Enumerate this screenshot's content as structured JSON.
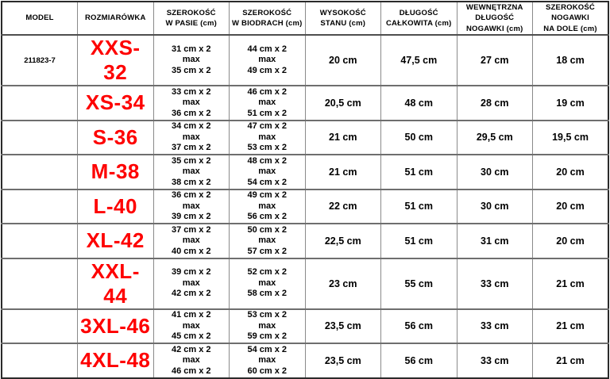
{
  "colors": {
    "size_label_red": "#fe0000",
    "text_black": "#000000",
    "grid_gray": "#8a8a8a"
  },
  "table": {
    "headers": {
      "model": "MODEL",
      "size": "ROZMIARÓWKA",
      "waist": "SZEROKOŚĆ\nW PASIE (cm)",
      "hips": "SZEROKOŚĆ\nW BIODRACH (cm)",
      "rise": "WYSOKOŚĆ\nSTANU (cm)",
      "length": "DŁUGOŚĆ\nCAŁKOWITA (cm)",
      "inseam": "WEWNĘTRZNA\nDŁUGOŚĆ\nNOGAWKI (cm)",
      "leg": "SZEROKOŚĆ\nNOGAWKI\nNA DOLE (cm)"
    },
    "rows": [
      {
        "model": "211823-7",
        "size": "XXS-32",
        "waist": "31 cm x 2\nmax\n35 cm x 2",
        "hips": "44 cm x 2\nmax\n49 cm x 2",
        "rise": "20 cm",
        "length": "47,5 cm",
        "inseam": "27 cm",
        "leg": "18 cm"
      },
      {
        "model": "",
        "size": "XS-34",
        "waist": "33 cm x 2\nmax\n36 cm x 2",
        "hips": "46 cm x 2\nmax\n51 cm x 2",
        "rise": "20,5 cm",
        "length": "48 cm",
        "inseam": "28 cm",
        "leg": "19 cm"
      },
      {
        "model": "",
        "size": "S-36",
        "waist": "34 cm x 2\nmax\n37 cm x 2",
        "hips": "47 cm x 2\nmax\n53 cm x 2",
        "rise": "21 cm",
        "length": "50 cm",
        "inseam": "29,5 cm",
        "leg": "19,5 cm"
      },
      {
        "model": "",
        "size": "M-38",
        "waist": "35 cm x 2\nmax\n38 cm x 2",
        "hips": "48 cm x 2\nmax\n54 cm x 2",
        "rise": "21 cm",
        "length": "51 cm",
        "inseam": "30 cm",
        "leg": "20 cm"
      },
      {
        "model": "",
        "size": "L-40",
        "waist": "36 cm x 2\nmax\n39 cm x 2",
        "hips": "49 cm x 2\nmax\n56 cm x 2",
        "rise": "22 cm",
        "length": "51 cm",
        "inseam": "30 cm",
        "leg": "20 cm"
      },
      {
        "model": "",
        "size": "XL-42",
        "waist": "37 cm x 2\nmax\n40 cm x 2",
        "hips": "50 cm x 2\nmax\n57 cm x 2",
        "rise": "22,5 cm",
        "length": "51 cm",
        "inseam": "31 cm",
        "leg": "20 cm"
      },
      {
        "model": "",
        "size": "XXL-44",
        "waist": "39 cm x 2\nmax\n42 cm x 2",
        "hips": "52 cm x 2\nmax\n58 cm x 2",
        "rise": "23 cm",
        "length": "55 cm",
        "inseam": "33 cm",
        "leg": "21 cm"
      },
      {
        "model": "",
        "size": "3XL-46",
        "waist": "41 cm x 2\nmax\n45 cm x 2",
        "hips": "53 cm x 2\nmax\n59 cm x 2",
        "rise": "23,5 cm",
        "length": "56 cm",
        "inseam": "33 cm",
        "leg": "21 cm"
      },
      {
        "model": "",
        "size": "4XL-48",
        "waist": "42 cm x 2\nmax\n46 cm x 2",
        "hips": "54 cm x 2\nmax\n60 cm x 2",
        "rise": "23,5 cm",
        "length": "56 cm",
        "inseam": "33 cm",
        "leg": "21 cm"
      }
    ]
  }
}
